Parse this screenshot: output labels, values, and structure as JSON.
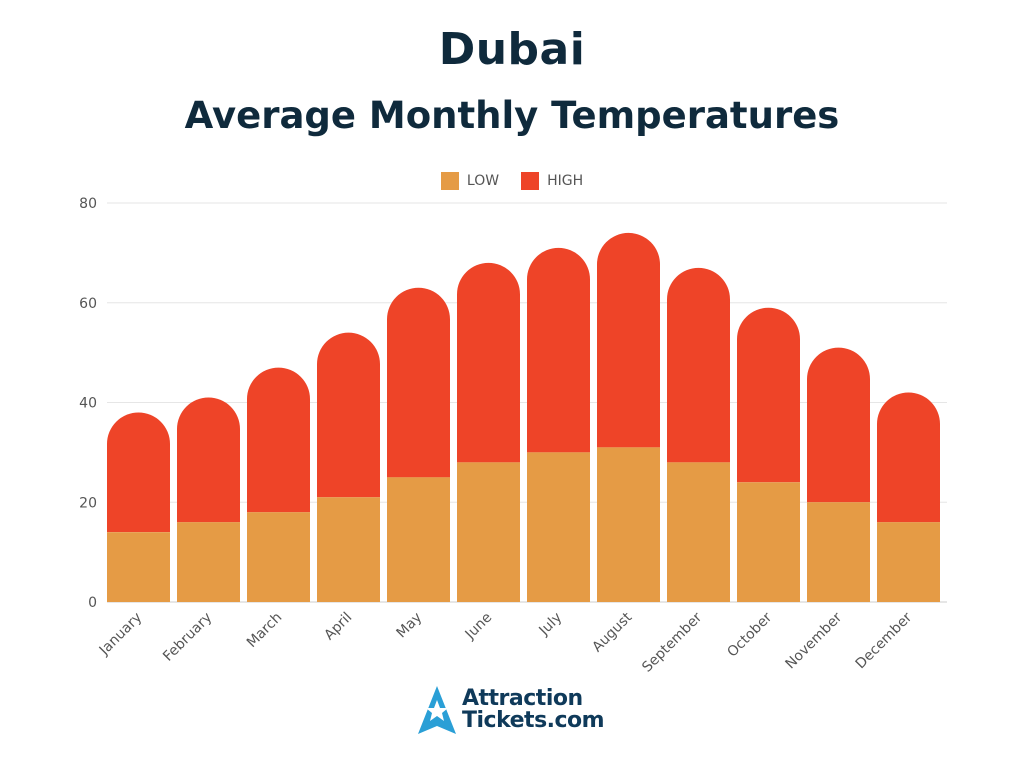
{
  "chart_data": {
    "type": "bar",
    "stacked": true,
    "title": "Dubai",
    "subtitle": "Average Monthly Temperatures",
    "xlabel": "",
    "ylabel": "",
    "ylim": [
      0,
      80
    ],
    "yticks": [
      0,
      20,
      40,
      60,
      80
    ],
    "grid": true,
    "legend_position": "top-center",
    "categories": [
      "January",
      "February",
      "March",
      "April",
      "May",
      "June",
      "July",
      "August",
      "September",
      "October",
      "November",
      "December"
    ],
    "series": [
      {
        "name": "LOW",
        "color": "#e59b45",
        "values": [
          14,
          16,
          18,
          21,
          25,
          28,
          30,
          31,
          28,
          24,
          20,
          16
        ]
      },
      {
        "name": "HIGH",
        "color": "#ee4428",
        "values": [
          38,
          41,
          47,
          54,
          63,
          68,
          71,
          74,
          67,
          59,
          51,
          42
        ]
      }
    ],
    "note": "HIGH bar drawn as total height; LOW stacked at bottom"
  },
  "brand": {
    "line1": "Attraction",
    "line2": "Tickets.com",
    "logo_color": "#2a9fd6",
    "text_color": "#0f3a5a"
  }
}
